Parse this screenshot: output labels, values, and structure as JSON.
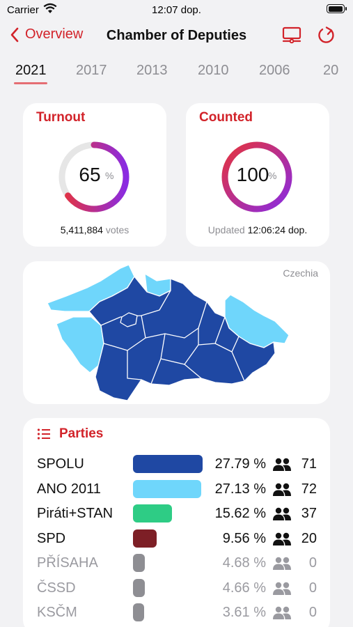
{
  "status_bar": {
    "carrier": "Carrier",
    "time": "12:07 dop."
  },
  "nav": {
    "back_label": "Overview",
    "title": "Chamber of Deputies"
  },
  "year_tabs": [
    "2021",
    "2017",
    "2013",
    "2010",
    "2006",
    "20"
  ],
  "active_year": "2021",
  "turnout": {
    "title": "Turnout",
    "value": "65",
    "unit": "%",
    "fraction": 0.65,
    "votes": "5,411,884",
    "votes_suffix": " votes"
  },
  "counted": {
    "title": "Counted",
    "value": "100",
    "unit": "%",
    "fraction": 1.0,
    "updated_label": "Updated ",
    "updated_time": "12:06:24 dop."
  },
  "map": {
    "label": "Czechia",
    "colors": {
      "dark": "#1f48a3",
      "light": "#6fd6fb"
    }
  },
  "parties": {
    "title": "Parties",
    "rows": [
      {
        "name": "SPOLU",
        "pct": "27.79 %",
        "share": 27.79,
        "seats": "71",
        "color": "#1f48a3",
        "minor": false
      },
      {
        "name": "ANO 2011",
        "pct": "27.13 %",
        "share": 27.13,
        "seats": "72",
        "color": "#6fd6fb",
        "minor": false
      },
      {
        "name": "Piráti+STAN",
        "pct": "15.62 %",
        "share": 15.62,
        "seats": "37",
        "color": "#2ecc85",
        "minor": false
      },
      {
        "name": "SPD",
        "pct": "9.56 %",
        "share": 9.56,
        "seats": "20",
        "color": "#7d1f26",
        "minor": false
      },
      {
        "name": "PŘÍSAHA",
        "pct": "4.68 %",
        "share": 4.68,
        "seats": "0",
        "color": "#8e8e93",
        "minor": true
      },
      {
        "name": "ČSSD",
        "pct": "4.66 %",
        "share": 4.66,
        "seats": "0",
        "color": "#8e8e93",
        "minor": true
      },
      {
        "name": "KSČM",
        "pct": "3.61 %",
        "share": 3.61,
        "seats": "0",
        "color": "#8e8e93",
        "minor": true
      }
    ]
  },
  "accent": "#d2232a"
}
